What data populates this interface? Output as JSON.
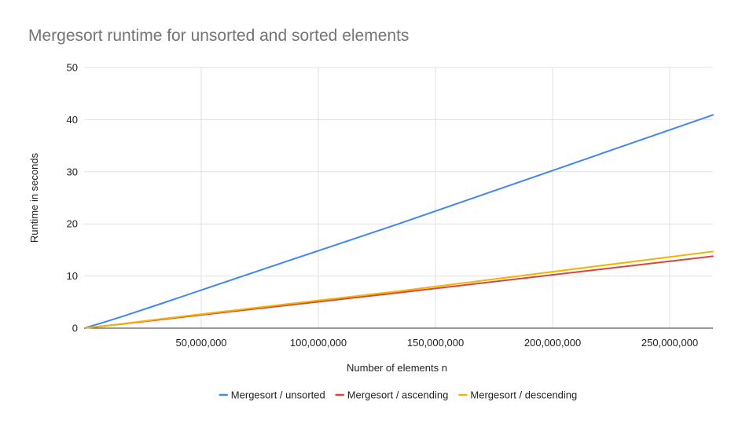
{
  "chart_data": {
    "type": "line",
    "title": "Mergesort runtime for unsorted and sorted elements",
    "xlabel": "Number of elements n",
    "ylabel": "Runtime in seconds",
    "xlim": [
      0,
      268435456
    ],
    "ylim": [
      0,
      50
    ],
    "x_ticks": [
      50000000,
      100000000,
      150000000,
      200000000,
      250000000
    ],
    "x_tick_labels": [
      "50,000,000",
      "100,000,000",
      "150,000,000",
      "200,000,000",
      "250,000,000"
    ],
    "y_ticks": [
      0,
      10,
      20,
      30,
      40,
      50
    ],
    "y_tick_labels": [
      "0",
      "10",
      "20",
      "30",
      "40",
      "50"
    ],
    "grid": true,
    "legend_position": "bottom",
    "x": [
      1048576,
      2097152,
      4194304,
      8388608,
      16777216,
      33554432,
      67108864,
      134217728,
      268435456
    ],
    "series": [
      {
        "name": "Mergesort / unsorted",
        "color": "#4285f4",
        "values": [
          0.13,
          0.27,
          0.55,
          1.12,
          2.3,
          4.8,
          9.9,
          20.0,
          40.9
        ]
      },
      {
        "name": "Mergesort / ascending",
        "color": "#db4437",
        "values": [
          0.04,
          0.09,
          0.19,
          0.4,
          0.83,
          1.7,
          3.4,
          6.8,
          13.8
        ]
      },
      {
        "name": "Mergesort / descending",
        "color": "#f4b400",
        "values": [
          0.05,
          0.1,
          0.2,
          0.42,
          0.87,
          1.8,
          3.6,
          7.1,
          14.7
        ]
      }
    ]
  }
}
